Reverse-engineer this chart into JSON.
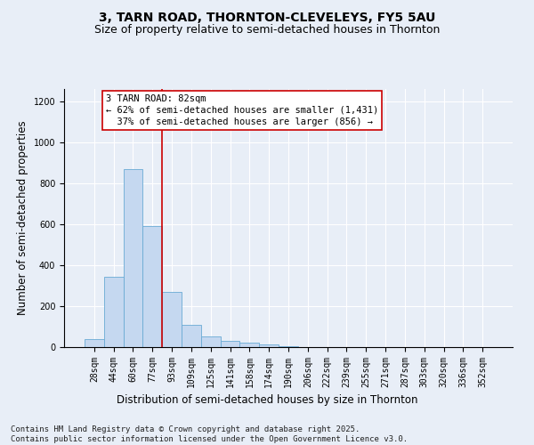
{
  "title_line1": "3, TARN ROAD, THORNTON-CLEVELEYS, FY5 5AU",
  "title_line2": "Size of property relative to semi-detached houses in Thornton",
  "xlabel": "Distribution of semi-detached houses by size in Thornton",
  "ylabel": "Number of semi-detached properties",
  "categories": [
    "28sqm",
    "44sqm",
    "60sqm",
    "77sqm",
    "93sqm",
    "109sqm",
    "125sqm",
    "141sqm",
    "158sqm",
    "174sqm",
    "190sqm",
    "206sqm",
    "222sqm",
    "239sqm",
    "255sqm",
    "271sqm",
    "287sqm",
    "303sqm",
    "320sqm",
    "336sqm",
    "352sqm"
  ],
  "values": [
    40,
    345,
    870,
    590,
    270,
    110,
    50,
    30,
    20,
    12,
    5,
    0,
    0,
    0,
    0,
    0,
    0,
    0,
    0,
    0,
    0
  ],
  "bar_color": "#c5d8f0",
  "bar_edge_color": "#6aaad4",
  "reference_line_x": 2.5,
  "reference_line_color": "#cc0000",
  "annotation_text": "3 TARN ROAD: 82sqm\n← 62% of semi-detached houses are smaller (1,431)\n  37% of semi-detached houses are larger (856) →",
  "annotation_box_color": "white",
  "annotation_box_edge_color": "#cc0000",
  "ylim": [
    0,
    1260
  ],
  "yticks": [
    0,
    200,
    400,
    600,
    800,
    1000,
    1200
  ],
  "background_color": "#e8eef7",
  "plot_bg_color": "#e8eef7",
  "grid_color": "#ffffff",
  "footer_line1": "Contains HM Land Registry data © Crown copyright and database right 2025.",
  "footer_line2": "Contains public sector information licensed under the Open Government Licence v3.0.",
  "title_fontsize": 10,
  "subtitle_fontsize": 9,
  "axis_label_fontsize": 8.5,
  "tick_fontsize": 7,
  "annotation_fontsize": 7.5,
  "footer_fontsize": 6.5
}
